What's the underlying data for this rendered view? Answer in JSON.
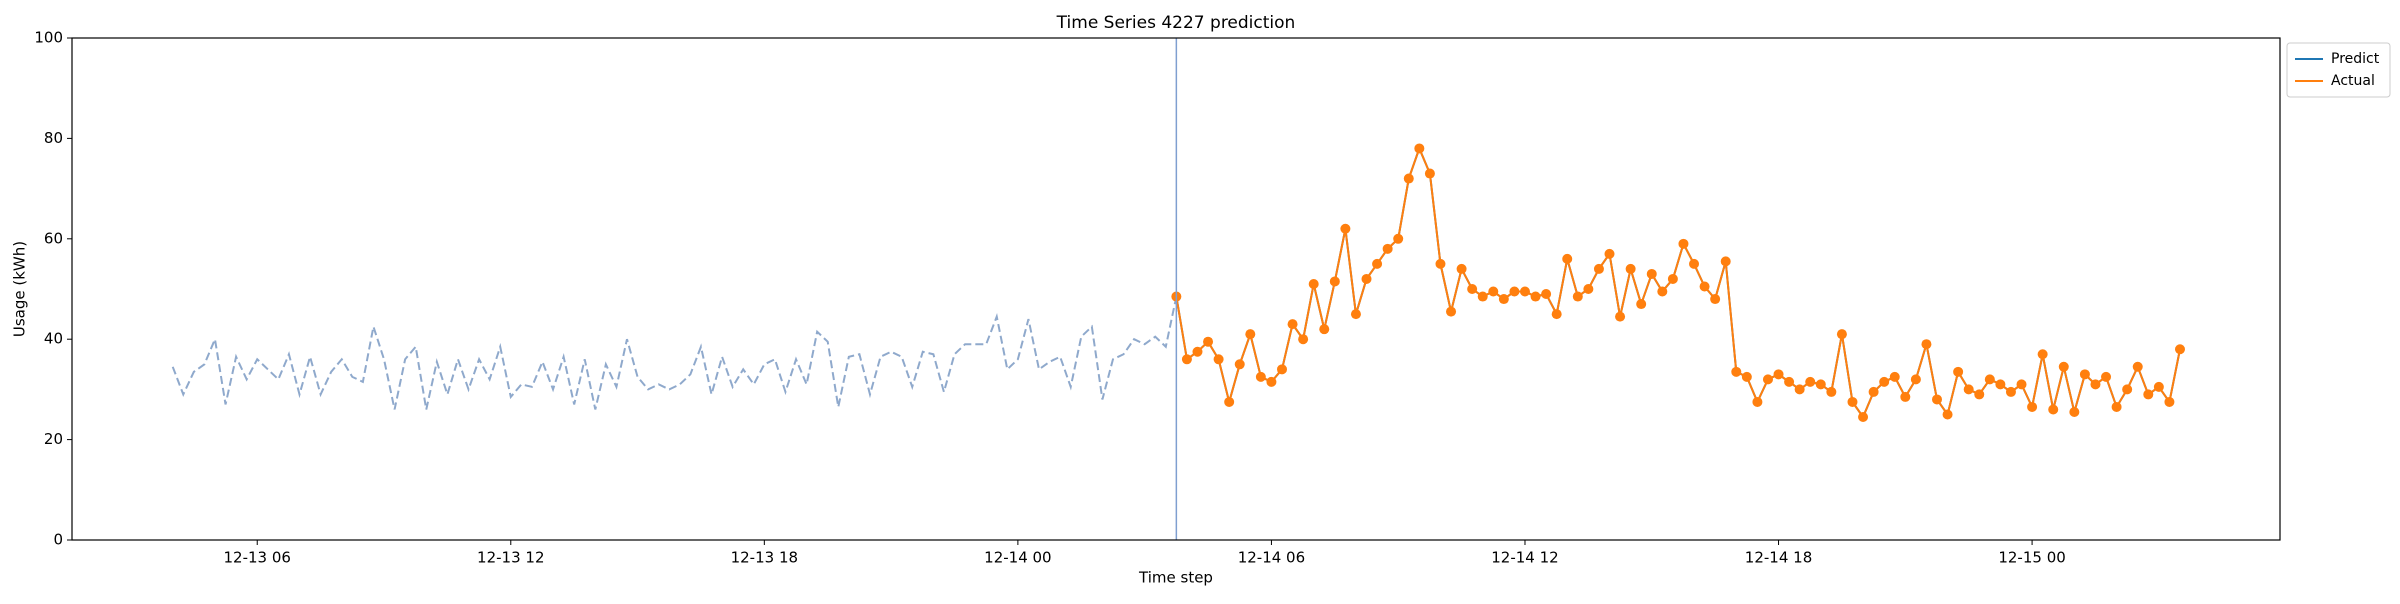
{
  "chart_data": {
    "type": "line",
    "title": "Time Series 4227 prediction",
    "x_label": "Time step",
    "y_label": "Usage (kWh)",
    "x": [
      "12-13 04:00",
      "12-13 04:15",
      "12-13 04:30",
      "12-13 04:45",
      "12-13 05:00",
      "12-13 05:15",
      "12-13 05:30",
      "12-13 05:45",
      "12-13 06:00",
      "12-13 06:15",
      "12-13 06:30",
      "12-13 06:45",
      "12-13 07:00",
      "12-13 07:15",
      "12-13 07:30",
      "12-13 07:45",
      "12-13 08:00",
      "12-13 08:15",
      "12-13 08:30",
      "12-13 08:45",
      "12-13 09:00",
      "12-13 09:15",
      "12-13 09:30",
      "12-13 09:45",
      "12-13 10:00",
      "12-13 10:15",
      "12-13 10:30",
      "12-13 10:45",
      "12-13 11:00",
      "12-13 11:15",
      "12-13 11:30",
      "12-13 11:45",
      "12-13 12:00",
      "12-13 12:15",
      "12-13 12:30",
      "12-13 12:45",
      "12-13 13:00",
      "12-13 13:15",
      "12-13 13:30",
      "12-13 13:45",
      "12-13 14:00",
      "12-13 14:15",
      "12-13 14:30",
      "12-13 14:45",
      "12-13 15:00",
      "12-13 15:15",
      "12-13 15:30",
      "12-13 15:45",
      "12-13 16:00",
      "12-13 16:15",
      "12-13 16:30",
      "12-13 16:45",
      "12-13 17:00",
      "12-13 17:15",
      "12-13 17:30",
      "12-13 17:45",
      "12-13 18:00",
      "12-13 18:15",
      "12-13 18:30",
      "12-13 18:45",
      "12-13 19:00",
      "12-13 19:15",
      "12-13 19:30",
      "12-13 19:45",
      "12-13 20:00",
      "12-13 20:15",
      "12-13 20:30",
      "12-13 20:45",
      "12-13 21:00",
      "12-13 21:15",
      "12-13 21:30",
      "12-13 21:45",
      "12-13 22:00",
      "12-13 22:15",
      "12-13 22:30",
      "12-13 22:45",
      "12-13 23:00",
      "12-13 23:15",
      "12-13 23:30",
      "12-13 23:45",
      "12-14 00:00",
      "12-14 00:15",
      "12-14 00:30",
      "12-14 00:45",
      "12-14 01:00",
      "12-14 01:15",
      "12-14 01:30",
      "12-14 01:45",
      "12-14 02:00",
      "12-14 02:15",
      "12-14 02:30",
      "12-14 02:45",
      "12-14 03:00",
      "12-14 03:15",
      "12-14 03:30",
      "12-14 03:45",
      "12-14 04:00",
      "12-14 04:15",
      "12-14 04:30",
      "12-14 04:45",
      "12-14 05:00",
      "12-14 05:15",
      "12-14 05:30",
      "12-14 05:45",
      "12-14 06:00",
      "12-14 06:15",
      "12-14 06:30",
      "12-14 06:45",
      "12-14 07:00",
      "12-14 07:15",
      "12-14 07:30",
      "12-14 07:45",
      "12-14 08:00",
      "12-14 08:15",
      "12-14 08:30",
      "12-14 08:45",
      "12-14 09:00",
      "12-14 09:15",
      "12-14 09:30",
      "12-14 09:45",
      "12-14 10:00",
      "12-14 10:15",
      "12-14 10:30",
      "12-14 10:45",
      "12-14 11:00",
      "12-14 11:15",
      "12-14 11:30",
      "12-14 11:45",
      "12-14 12:00",
      "12-14 12:15",
      "12-14 12:30",
      "12-14 12:45",
      "12-14 13:00",
      "12-14 13:15",
      "12-14 13:30",
      "12-14 13:45",
      "12-14 14:00",
      "12-14 14:15",
      "12-14 14:30",
      "12-14 14:45",
      "12-14 15:00",
      "12-14 15:15",
      "12-14 15:30",
      "12-14 15:45",
      "12-14 16:00",
      "12-14 16:15",
      "12-14 16:30",
      "12-14 16:45",
      "12-14 17:00",
      "12-14 17:15",
      "12-14 17:30",
      "12-14 17:45",
      "12-14 18:00",
      "12-14 18:15",
      "12-14 18:30",
      "12-14 18:45",
      "12-14 19:00",
      "12-14 19:15",
      "12-14 19:30",
      "12-14 19:45",
      "12-14 20:00",
      "12-14 20:15",
      "12-14 20:30",
      "12-14 20:45",
      "12-14 21:00",
      "12-14 21:15",
      "12-14 21:30",
      "12-14 21:45",
      "12-14 22:00",
      "12-14 22:15",
      "12-14 22:30",
      "12-14 22:45",
      "12-14 23:00",
      "12-14 23:15",
      "12-14 23:30",
      "12-14 23:45",
      "12-15 00:00",
      "12-15 00:15",
      "12-15 00:30",
      "12-15 00:45",
      "12-15 01:00",
      "12-15 01:15",
      "12-15 01:30",
      "12-15 01:45",
      "12-15 02:00",
      "12-15 02:15",
      "12-15 02:30",
      "12-15 02:45",
      "12-15 03:00",
      "12-15 03:15",
      "12-15 03:30"
    ],
    "series": [
      {
        "color": "#8fa9cc",
        "linestyle": "dashed",
        "values": [
          34.5,
          29,
          33.5,
          35,
          40,
          27,
          36.5,
          32,
          36,
          34,
          32,
          37,
          29,
          36.5,
          29,
          33.5,
          36,
          32.5,
          31.5,
          42.5,
          36,
          26,
          36,
          38.5,
          26,
          35.5,
          29,
          36,
          30,
          36,
          32,
          38.5,
          28.5,
          31,
          30.5,
          35.5,
          30,
          36.5,
          27,
          36,
          26,
          35,
          30.5,
          40,
          32.5,
          30,
          31,
          30,
          31,
          33,
          38.5,
          29,
          36.5,
          30.5,
          34,
          31,
          35,
          36,
          29.5,
          36,
          31,
          41.5,
          39.5,
          26.5,
          36.5,
          37,
          29,
          36.5,
          37.5,
          36.5,
          30.5,
          37.5,
          37,
          29.5,
          37,
          39,
          39,
          39,
          44.5,
          34,
          36,
          44,
          34,
          35.5,
          36.5,
          30.5,
          40.5,
          42.5,
          28,
          36,
          37,
          40,
          39,
          40.5,
          38.5,
          48.5,
          null,
          null,
          null,
          null,
          null,
          null,
          null,
          null,
          null,
          null,
          null,
          null,
          null,
          null,
          null,
          null,
          null,
          null,
          null,
          null,
          null,
          null,
          null,
          null,
          null,
          null,
          null,
          null,
          null,
          null,
          null,
          null,
          null,
          null,
          null,
          null,
          null,
          null,
          null,
          null,
          null,
          null,
          null,
          null,
          null,
          null,
          null,
          null,
          null,
          null,
          null,
          null,
          null,
          null,
          null,
          null,
          null,
          null,
          null,
          null,
          null,
          null,
          null,
          null,
          null,
          null,
          null,
          null,
          null,
          null,
          null,
          null,
          null,
          null,
          null,
          null,
          null,
          null,
          null,
          null,
          null,
          null,
          null,
          null,
          null,
          null,
          null,
          null,
          null,
          null,
          null,
          null,
          null,
          null,
          null
        ]
      },
      {
        "name": "Predict",
        "color": "#1f77b4",
        "linestyle": "solid",
        "values": [
          null,
          null,
          null,
          null,
          null,
          null,
          null,
          null,
          null,
          null,
          null,
          null,
          null,
          null,
          null,
          null,
          null,
          null,
          null,
          null,
          null,
          null,
          null,
          null,
          null,
          null,
          null,
          null,
          null,
          null,
          null,
          null,
          null,
          null,
          null,
          null,
          null,
          null,
          null,
          null,
          null,
          null,
          null,
          null,
          null,
          null,
          null,
          null,
          null,
          null,
          null,
          null,
          null,
          null,
          null,
          null,
          null,
          null,
          null,
          null,
          null,
          null,
          null,
          null,
          null,
          null,
          null,
          null,
          null,
          null,
          null,
          null,
          null,
          null,
          null,
          null,
          null,
          null,
          null,
          null,
          null,
          null,
          null,
          null,
          null,
          null,
          null,
          null,
          null,
          null,
          null,
          null,
          null,
          null,
          null,
          48.5,
          36,
          37.5,
          39.5,
          36,
          27.5,
          35,
          41,
          32.5,
          31.5,
          34,
          43,
          40,
          51,
          42,
          51.5,
          62,
          45,
          52,
          55,
          58,
          60,
          72,
          78,
          73,
          55,
          45.5,
          54,
          50,
          48.5,
          49.5,
          48,
          49.5,
          49.5,
          48.5,
          49,
          45,
          56,
          48.5,
          50,
          54,
          57,
          44.5,
          54,
          47,
          53,
          49.5,
          52,
          59,
          55,
          50.5,
          48,
          55.5,
          33.5,
          32.5,
          27.5,
          32,
          33,
          31.5,
          30,
          31.5,
          31,
          29.5,
          41,
          27.5,
          24.5,
          29.5,
          31.5,
          32.5,
          28.5,
          32,
          39,
          28,
          25,
          33.5,
          30,
          29,
          32,
          31,
          29.5,
          31,
          26.5,
          37,
          26,
          34.5,
          25.5,
          33,
          31,
          32.5,
          26.5,
          30,
          34.5,
          29,
          30.5,
          27.5,
          38
        ]
      },
      {
        "name": "Actual",
        "color": "#ff7f0e",
        "linestyle": "solid",
        "marker": "o",
        "values": [
          null,
          null,
          null,
          null,
          null,
          null,
          null,
          null,
          null,
          null,
          null,
          null,
          null,
          null,
          null,
          null,
          null,
          null,
          null,
          null,
          null,
          null,
          null,
          null,
          null,
          null,
          null,
          null,
          null,
          null,
          null,
          null,
          null,
          null,
          null,
          null,
          null,
          null,
          null,
          null,
          null,
          null,
          null,
          null,
          null,
          null,
          null,
          null,
          null,
          null,
          null,
          null,
          null,
          null,
          null,
          null,
          null,
          null,
          null,
          null,
          null,
          null,
          null,
          null,
          null,
          null,
          null,
          null,
          null,
          null,
          null,
          null,
          null,
          null,
          null,
          null,
          null,
          null,
          null,
          null,
          null,
          null,
          null,
          null,
          null,
          null,
          null,
          null,
          null,
          null,
          null,
          null,
          null,
          null,
          null,
          48.5,
          36,
          37.5,
          39.5,
          36,
          27.5,
          35,
          41,
          32.5,
          31.5,
          34,
          43,
          40,
          51,
          42,
          51.5,
          62,
          45,
          52,
          55,
          58,
          60,
          72,
          78,
          73,
          55,
          45.5,
          54,
          50,
          48.5,
          49.5,
          48,
          49.5,
          49.5,
          48.5,
          49,
          45,
          56,
          48.5,
          50,
          54,
          57,
          44.5,
          54,
          47,
          53,
          49.5,
          52,
          59,
          55,
          50.5,
          48,
          55.5,
          33.5,
          32.5,
          27.5,
          32,
          33,
          31.5,
          30,
          31.5,
          31,
          29.5,
          41,
          27.5,
          24.5,
          29.5,
          31.5,
          32.5,
          28.5,
          32,
          39,
          28,
          25,
          33.5,
          30,
          29,
          32,
          31,
          29.5,
          31,
          26.5,
          37,
          26,
          34.5,
          25.5,
          33,
          31,
          32.5,
          26.5,
          30,
          34.5,
          29,
          30.5,
          27.5,
          38
        ]
      }
    ],
    "xlim": [
      "12-13 01:37",
      "12-15 05:52"
    ],
    "xticks": [
      {
        "value": "12-13 06:00",
        "label": "12-13 06"
      },
      {
        "value": "12-13 12:00",
        "label": "12-13 12"
      },
      {
        "value": "12-13 18:00",
        "label": "12-13 18"
      },
      {
        "value": "12-14 00:00",
        "label": "12-14 00"
      },
      {
        "value": "12-14 06:00",
        "label": "12-14 06"
      },
      {
        "value": "12-14 12:00",
        "label": "12-14 12"
      },
      {
        "value": "12-14 18:00",
        "label": "12-14 18"
      },
      {
        "value": "12-15 00:00",
        "label": "12-15 00"
      }
    ],
    "ylim": [
      0,
      100
    ],
    "yticks": [
      0,
      20,
      40,
      60,
      80,
      100
    ],
    "grid": false,
    "legend": "outside upper right"
  }
}
